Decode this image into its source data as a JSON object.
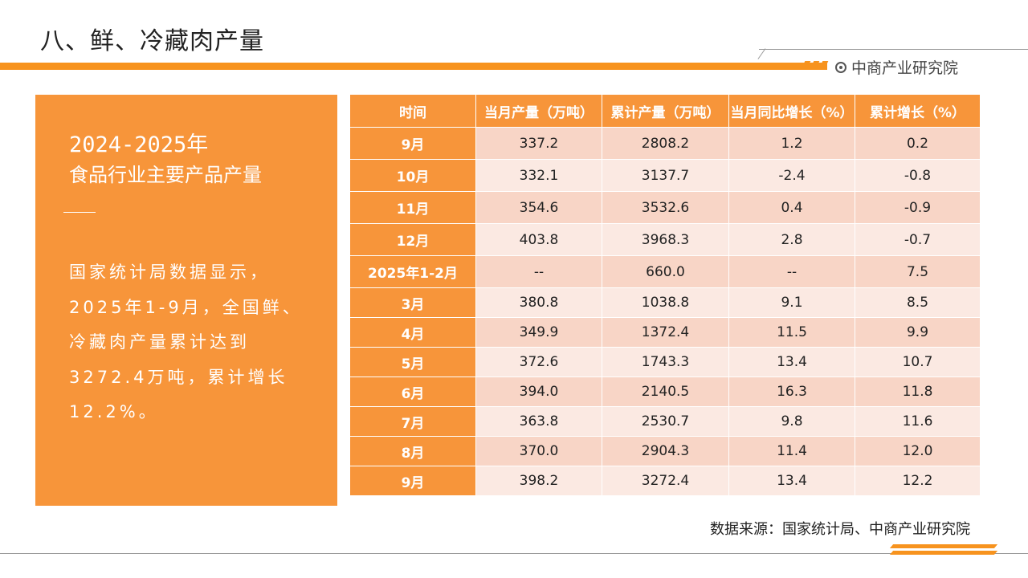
{
  "page": {
    "title": "八、鲜、冷藏肉产量",
    "brand": "中商产业研究院",
    "source": "数据来源：国家统计局、中商产业研究院"
  },
  "side": {
    "year": "2024-2025年",
    "subtitle": "食品行业主要产品产量",
    "body": "国家统计局数据显示，\n2025年1-9月，全国鲜、\n冷藏肉产量累计达到\n3272.4万吨，累计增长\n12.2%。"
  },
  "colors": {
    "accent": "#f7953a",
    "row_dark": "#f8d5c6",
    "row_light": "#fbe9e2"
  },
  "table": {
    "headers": [
      "时间",
      "当月产量（万吨）",
      "累计产量（万吨）",
      "当月同比增长（%）",
      "累计增长（%）"
    ],
    "rows": [
      [
        "9月",
        "337.2",
        "2808.2",
        "1.2",
        "0.2"
      ],
      [
        "10月",
        "332.1",
        "3137.7",
        "-2.4",
        "-0.8"
      ],
      [
        "11月",
        "354.6",
        "3532.6",
        "0.4",
        "-0.9"
      ],
      [
        "12月",
        "403.8",
        "3968.3",
        "2.8",
        "-0.7"
      ],
      [
        "2025年1-2月",
        "--",
        "660.0",
        "--",
        "7.5"
      ],
      [
        "3月",
        "380.8",
        "1038.8",
        "9.1",
        "8.5"
      ],
      [
        "4月",
        "349.9",
        "1372.4",
        "11.5",
        "9.9"
      ],
      [
        "5月",
        "372.6",
        "1743.3",
        "13.4",
        "10.7"
      ],
      [
        "6月",
        "394.0",
        "2140.5",
        "16.3",
        "11.8"
      ],
      [
        "7月",
        "363.8",
        "2530.7",
        "9.8",
        "11.6"
      ],
      [
        "8月",
        "370.0",
        "2904.3",
        "11.4",
        "12.0"
      ],
      [
        "9月",
        "398.2",
        "3272.4",
        "13.4",
        "12.2"
      ]
    ]
  }
}
